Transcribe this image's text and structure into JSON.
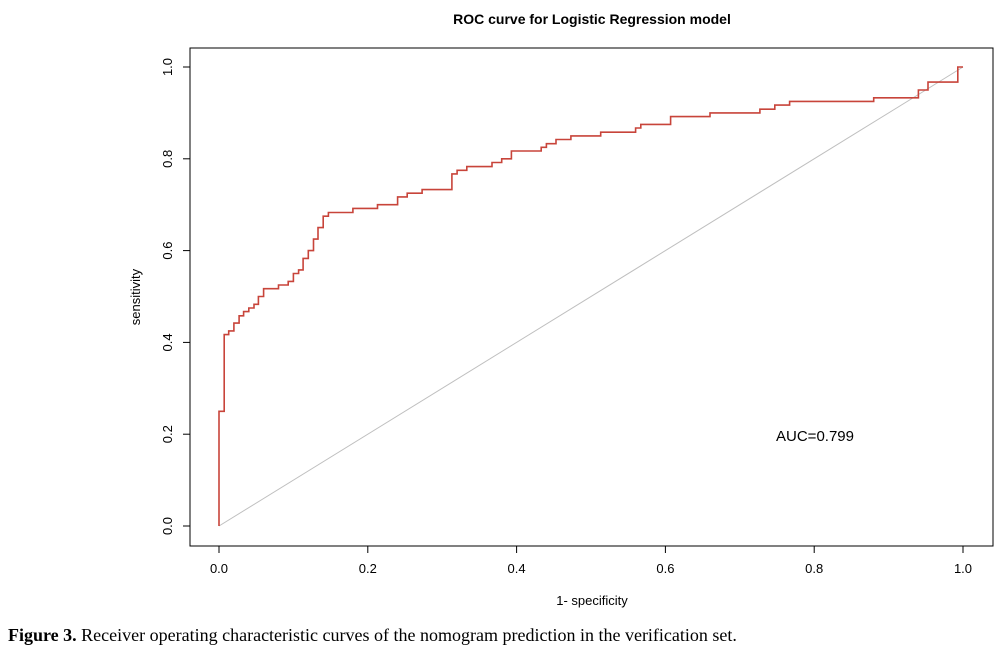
{
  "chart_data": {
    "type": "line",
    "title": "ROC curve for Logistic Regression model",
    "xlabel": "1- specificity",
    "ylabel": "sensitivity",
    "xlim": [
      0,
      1
    ],
    "ylim": [
      0,
      1
    ],
    "x_ticks": [
      "0.0",
      "0.2",
      "0.4",
      "0.6",
      "0.8",
      "1.0"
    ],
    "y_ticks": [
      "0.0",
      "0.2",
      "0.4",
      "0.6",
      "0.8",
      "1.0"
    ],
    "grid": false,
    "annotation": "AUC=0.799",
    "series": [
      {
        "color": "#c8443a",
        "step": true,
        "x": [
          0.0,
          0.0,
          0.007,
          0.007,
          0.013,
          0.02,
          0.027,
          0.033,
          0.04,
          0.047,
          0.053,
          0.06,
          0.08,
          0.093,
          0.1,
          0.107,
          0.113,
          0.12,
          0.127,
          0.133,
          0.14,
          0.147,
          0.167,
          0.18,
          0.2,
          0.213,
          0.24,
          0.253,
          0.26,
          0.273,
          0.3,
          0.313,
          0.32,
          0.333,
          0.367,
          0.38,
          0.387,
          0.393,
          0.427,
          0.433,
          0.44,
          0.453,
          0.473,
          0.487,
          0.513,
          0.56,
          0.567,
          0.607,
          0.66,
          0.727,
          0.747,
          0.767,
          0.867,
          0.88,
          0.94,
          0.947,
          0.953,
          0.96,
          0.993,
          0.993,
          1.0
        ],
        "y": [
          0.0,
          0.25,
          0.25,
          0.417,
          0.425,
          0.442,
          0.458,
          0.467,
          0.475,
          0.483,
          0.5,
          0.517,
          0.525,
          0.533,
          0.55,
          0.558,
          0.583,
          0.6,
          0.625,
          0.65,
          0.675,
          0.683,
          0.683,
          0.692,
          0.692,
          0.7,
          0.717,
          0.725,
          0.725,
          0.733,
          0.733,
          0.767,
          0.775,
          0.783,
          0.792,
          0.8,
          0.8,
          0.817,
          0.817,
          0.825,
          0.833,
          0.842,
          0.85,
          0.85,
          0.858,
          0.867,
          0.875,
          0.892,
          0.9,
          0.908,
          0.917,
          0.925,
          0.925,
          0.933,
          0.95,
          0.95,
          0.967,
          0.967,
          0.967,
          1.0,
          1.0
        ]
      }
    ],
    "reference_line": {
      "x": [
        0,
        1
      ],
      "y": [
        0,
        1
      ],
      "color": "#bfbfbf"
    }
  },
  "caption": {
    "label": "Figure 3.",
    "text": " Receiver operating characteristic curves of the nomogram prediction in the verification set."
  }
}
